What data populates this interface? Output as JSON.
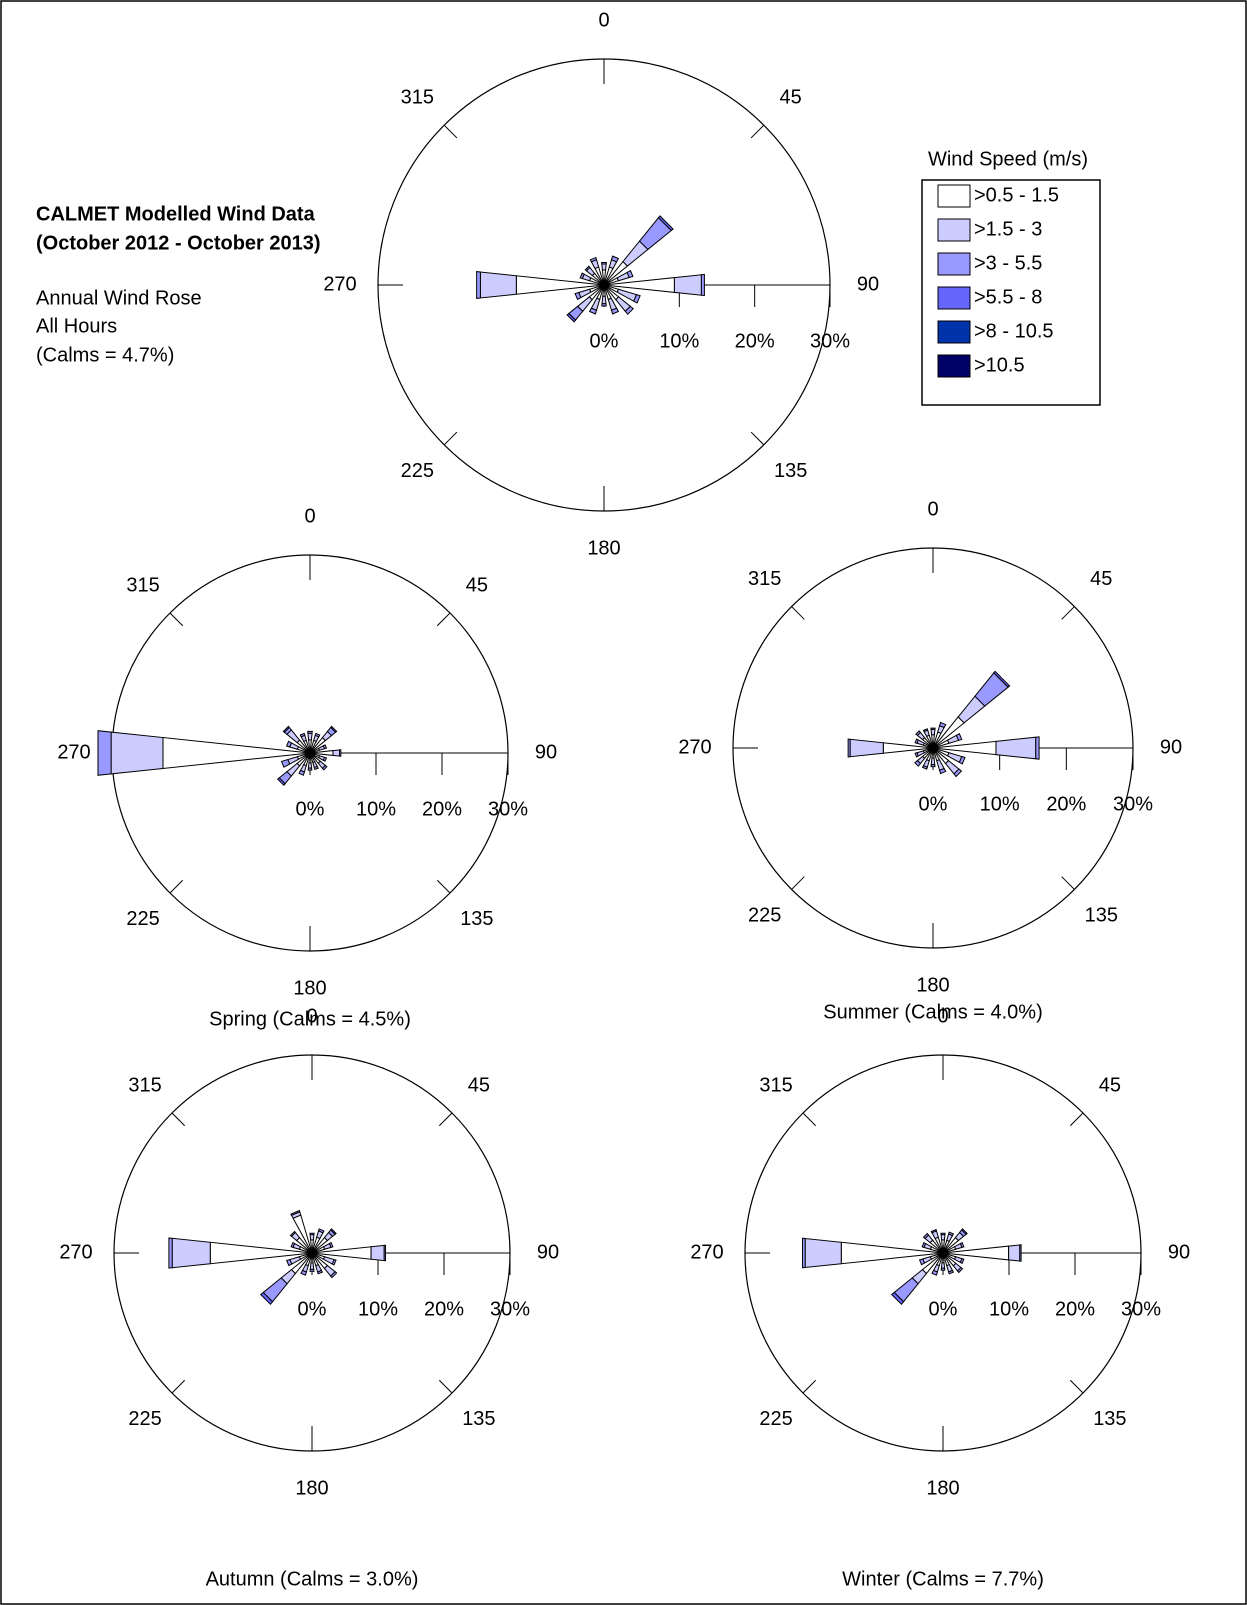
{
  "legend": {
    "title": "Wind Speed (m/s)",
    "items": [
      {
        "name": ">0.5 - 1.5",
        "color": "#ffffff"
      },
      {
        "name": ">1.5 - 3",
        "color": "#ccccff"
      },
      {
        "name": ">3 - 5.5",
        "color": "#9999ff"
      },
      {
        "name": ">5.5 - 8",
        "color": "#6666ff"
      },
      {
        "name": ">8 - 10.5",
        "color": "#0033aa"
      },
      {
        "name": ">10.5",
        "color": "#000066"
      }
    ]
  },
  "chart_data": [
    {
      "type": "wind_rose",
      "title": "CALMET Modelled Wind Data",
      "subtitle": "(October 2012 - October 2013)",
      "caption": [
        "Annual Wind Rose",
        "All Hours",
        "(Calms = 4.7%)"
      ],
      "x": [
        0,
        22.5,
        45,
        67.5,
        90,
        112.5,
        135,
        157.5,
        180,
        202.5,
        225,
        247.5,
        270,
        292.5,
        315,
        337.5
      ],
      "series": [
        {
          "values": [
            2,
            2.5,
            4,
            2,
            9.4,
            2,
            2.5,
            2,
            1.5,
            2,
            2.5,
            2,
            11.7,
            2,
            2,
            2.5
          ]
        },
        {
          "values": [
            0.8,
            1,
            3.5,
            1.5,
            3.6,
            2.5,
            2,
            1.5,
            1,
            1.5,
            2,
            1.5,
            4.8,
            1,
            1,
            1
          ]
        },
        {
          "values": [
            0.2,
            0.5,
            4,
            0.5,
            0.4,
            0.5,
            0.5,
            0.5,
            0.3,
            0.5,
            1.5,
            0.5,
            0.5,
            0.3,
            0.2,
            0.3
          ]
        },
        {
          "values": [
            0,
            0,
            0.3,
            0,
            0,
            0,
            0,
            0,
            0,
            0,
            0.3,
            0,
            0,
            0,
            0,
            0
          ]
        },
        {
          "values": [
            0,
            0,
            0,
            0,
            0,
            0,
            0,
            0,
            0,
            0,
            0,
            0,
            0,
            0,
            0,
            0
          ]
        },
        {
          "values": [
            0,
            0,
            0,
            0,
            0,
            0,
            0,
            0,
            0,
            0,
            0,
            0,
            0,
            0,
            0,
            0
          ]
        }
      ],
      "rlim": [
        0,
        30
      ],
      "rticks": [
        {
          "value": 0,
          "label": "0%"
        },
        {
          "value": 10,
          "label": "10%"
        },
        {
          "value": 20,
          "label": "20%"
        },
        {
          "value": 30,
          "label": "30%"
        }
      ],
      "angleticks": [
        0,
        45,
        90,
        135,
        180,
        225,
        270,
        315
      ]
    },
    {
      "type": "wind_rose",
      "caption": "Spring (Calms = 4.5%)",
      "x": [
        0,
        22.5,
        45,
        67.5,
        90,
        112.5,
        135,
        157.5,
        180,
        202.5,
        225,
        247.5,
        270,
        292.5,
        315,
        337.5
      ],
      "series": [
        {
          "values": [
            2,
            2,
            3,
            1.5,
            3.5,
            1.5,
            2,
            1.5,
            1.5,
            2,
            2.5,
            2,
            22.4,
            2,
            2.5,
            2
          ]
        },
        {
          "values": [
            1,
            0.8,
            1.2,
            0.8,
            1,
            0.8,
            1,
            0.8,
            0.8,
            1,
            2,
            1.5,
            7.9,
            1.2,
            2,
            0.8
          ]
        },
        {
          "values": [
            0.3,
            0.3,
            0.8,
            0.3,
            0.2,
            0.3,
            0.3,
            0.3,
            0.3,
            0.5,
            1.5,
            1,
            2,
            0.5,
            0.5,
            0.3
          ]
        },
        {
          "values": [
            0,
            0,
            0.2,
            0,
            0,
            0,
            0,
            0,
            0,
            0,
            0.3,
            0,
            0,
            0,
            0.2,
            0
          ]
        },
        {
          "values": [
            0,
            0,
            0,
            0,
            0,
            0,
            0,
            0,
            0,
            0,
            0,
            0,
            0,
            0,
            0,
            0
          ]
        },
        {
          "values": [
            0,
            0,
            0,
            0,
            0,
            0,
            0,
            0,
            0,
            0,
            0,
            0,
            0,
            0,
            0,
            0
          ]
        }
      ],
      "rlim": [
        0,
        30
      ],
      "rticks": [
        {
          "value": 0,
          "label": "0%"
        },
        {
          "value": 10,
          "label": "10%"
        },
        {
          "value": 20,
          "label": "20%"
        },
        {
          "value": 30,
          "label": "30%"
        }
      ],
      "angleticks": [
        0,
        45,
        90,
        135,
        180,
        225,
        270,
        315
      ]
    },
    {
      "type": "wind_rose",
      "caption": "Summer (Calms = 4.0%)",
      "x": [
        0,
        22.5,
        45,
        67.5,
        90,
        112.5,
        135,
        157.5,
        180,
        202.5,
        225,
        247.5,
        270,
        292.5,
        315,
        337.5
      ],
      "series": [
        {
          "values": [
            2,
            2.5,
            6,
            2.5,
            9.5,
            2.5,
            3,
            2,
            1.5,
            2,
            2,
            1.5,
            7.5,
            1.5,
            2,
            2
          ]
        },
        {
          "values": [
            0.8,
            1,
            4,
            1.5,
            6,
            2,
            2,
            1.5,
            1,
            1,
            1,
            1,
            5,
            1,
            1,
            0.8
          ]
        },
        {
          "values": [
            0.2,
            0.5,
            4.5,
            0.5,
            0.5,
            0.5,
            0.5,
            0.5,
            0.3,
            0.3,
            0.5,
            0.3,
            0.3,
            0.3,
            0.3,
            0.2
          ]
        },
        {
          "values": [
            0,
            0,
            0.3,
            0,
            0,
            0,
            0,
            0,
            0,
            0,
            0,
            0,
            0,
            0,
            0,
            0
          ]
        },
        {
          "values": [
            0,
            0,
            0,
            0,
            0,
            0,
            0,
            0,
            0,
            0,
            0,
            0,
            0,
            0,
            0,
            0
          ]
        },
        {
          "values": [
            0,
            0,
            0,
            0,
            0,
            0,
            0,
            0,
            0,
            0,
            0,
            0,
            0,
            0,
            0,
            0
          ]
        }
      ],
      "rlim": [
        0,
        30
      ],
      "rticks": [
        {
          "value": 0,
          "label": "0%"
        },
        {
          "value": 10,
          "label": "10%"
        },
        {
          "value": 20,
          "label": "20%"
        },
        {
          "value": 30,
          "label": "30%"
        }
      ],
      "angleticks": [
        0,
        45,
        90,
        135,
        180,
        225,
        270,
        315
      ]
    },
    {
      "type": "wind_rose",
      "caption": "Autumn (Calms = 3.0%)",
      "x": [
        0,
        22.5,
        45,
        67.5,
        90,
        112.5,
        135,
        157.5,
        180,
        202.5,
        225,
        247.5,
        270,
        292.5,
        315,
        337.5
      ],
      "series": [
        {
          "values": [
            2,
            2.5,
            3,
            2,
            9,
            2,
            3,
            2,
            1.5,
            2,
            4,
            2,
            15.5,
            2,
            3,
            6
          ]
        },
        {
          "values": [
            0.8,
            1,
            1,
            1,
            2,
            1.5,
            1.5,
            1,
            1,
            1,
            2,
            1.5,
            5.8,
            1,
            1,
            0.5
          ]
        },
        {
          "values": [
            0.2,
            0.3,
            0.5,
            0.3,
            0.2,
            0.3,
            0.3,
            0.3,
            0.3,
            0.5,
            3.5,
            0.5,
            0.5,
            0.3,
            0.2,
            0.2
          ]
        },
        {
          "values": [
            0,
            0,
            0.2,
            0,
            0,
            0,
            0,
            0,
            0,
            0,
            0.5,
            0,
            0,
            0,
            0,
            0
          ]
        },
        {
          "values": [
            0,
            0,
            0,
            0,
            0,
            0,
            0,
            0,
            0,
            0,
            0,
            0,
            0,
            0,
            0,
            0
          ]
        },
        {
          "values": [
            0,
            0,
            0,
            0,
            0,
            0,
            0,
            0,
            0,
            0,
            0,
            0,
            0,
            0,
            0,
            0
          ]
        }
      ],
      "rlim": [
        0,
        30
      ],
      "rticks": [
        {
          "value": 0,
          "label": "0%"
        },
        {
          "value": 10,
          "label": "10%"
        },
        {
          "value": 20,
          "label": "20%"
        },
        {
          "value": 30,
          "label": "30%"
        }
      ],
      "angleticks": [
        0,
        45,
        90,
        135,
        180,
        225,
        270,
        315
      ]
    },
    {
      "type": "wind_rose",
      "caption": "Winter (Calms = 7.7%)",
      "x": [
        0,
        22.5,
        45,
        67.5,
        90,
        112.5,
        135,
        157.5,
        180,
        202.5,
        225,
        247.5,
        270,
        292.5,
        315,
        337.5
      ],
      "series": [
        {
          "values": [
            2,
            2,
            3,
            2,
            10,
            2,
            2.5,
            2,
            1.5,
            2,
            4,
            2,
            15.5,
            2,
            2.5,
            2.5
          ]
        },
        {
          "values": [
            0.8,
            1,
            1,
            1,
            1.7,
            1,
            1,
            1,
            0.8,
            1,
            2,
            1.2,
            5.5,
            1,
            1,
            1
          ]
        },
        {
          "values": [
            0.2,
            0.3,
            0.5,
            0.3,
            0.2,
            0.3,
            0.3,
            0.3,
            0.3,
            0.5,
            3.5,
            0.5,
            0.4,
            0.3,
            0.3,
            0.2
          ]
        },
        {
          "values": [
            0,
            0,
            0.2,
            0,
            0,
            0,
            0,
            0,
            0,
            0,
            0.5,
            0,
            0,
            0,
            0,
            0
          ]
        },
        {
          "values": [
            0,
            0,
            0,
            0,
            0,
            0,
            0,
            0,
            0,
            0,
            0,
            0,
            0,
            0,
            0,
            0
          ]
        },
        {
          "values": [
            0,
            0,
            0,
            0,
            0,
            0,
            0,
            0,
            0,
            0,
            0,
            0,
            0,
            0,
            0,
            0
          ]
        }
      ],
      "rlim": [
        0,
        30
      ],
      "rticks": [
        {
          "value": 0,
          "label": "0%"
        },
        {
          "value": 10,
          "label": "10%"
        },
        {
          "value": 20,
          "label": "20%"
        },
        {
          "value": 30,
          "label": "30%"
        }
      ],
      "angleticks": [
        0,
        45,
        90,
        135,
        180,
        225,
        270,
        315
      ]
    }
  ]
}
